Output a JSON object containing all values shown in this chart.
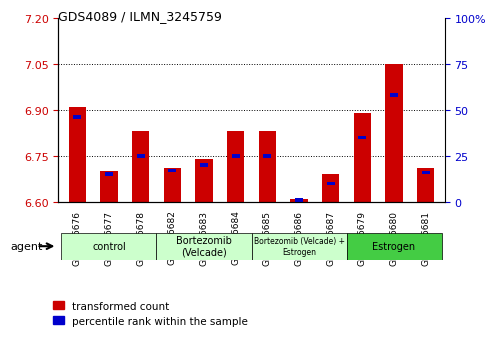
{
  "title": "GDS4089 / ILMN_3245759",
  "samples": [
    "GSM766676",
    "GSM766677",
    "GSM766678",
    "GSM766682",
    "GSM766683",
    "GSM766684",
    "GSM766685",
    "GSM766686",
    "GSM766687",
    "GSM766679",
    "GSM766680",
    "GSM766681"
  ],
  "red_values": [
    6.91,
    6.7,
    6.83,
    6.71,
    6.74,
    6.83,
    6.83,
    6.61,
    6.69,
    6.89,
    7.05,
    6.71
  ],
  "blue_values_pct": [
    46,
    15,
    25,
    17,
    20,
    25,
    25,
    1,
    10,
    35,
    58,
    16
  ],
  "ylim_left": [
    6.6,
    7.2
  ],
  "ylim_right": [
    0,
    100
  ],
  "yticks_left": [
    6.6,
    6.75,
    6.9,
    7.05,
    7.2
  ],
  "yticks_right": [
    0,
    25,
    50,
    75,
    100
  ],
  "hlines": [
    6.75,
    6.9,
    7.05
  ],
  "baseline": 6.6,
  "bar_width": 0.55,
  "red_color": "#CC0000",
  "blue_color": "#0000CC",
  "left_tick_color": "#CC0000",
  "right_tick_color": "#0000CC",
  "background_color": "#ffffff",
  "group_data": [
    {
      "label": "control",
      "start": 0,
      "end": 2,
      "color": "#ccffcc"
    },
    {
      "label": "Bortezomib\n(Velcade)",
      "start": 3,
      "end": 5,
      "color": "#ccffcc"
    },
    {
      "label": "Bortezomib (Velcade) +\nEstrogen",
      "start": 6,
      "end": 8,
      "color": "#ccffcc"
    },
    {
      "label": "Estrogen",
      "start": 9,
      "end": 11,
      "color": "#44cc44"
    }
  ],
  "agent_label": "agent",
  "legend_items": [
    "transformed count",
    "percentile rank within the sample"
  ]
}
